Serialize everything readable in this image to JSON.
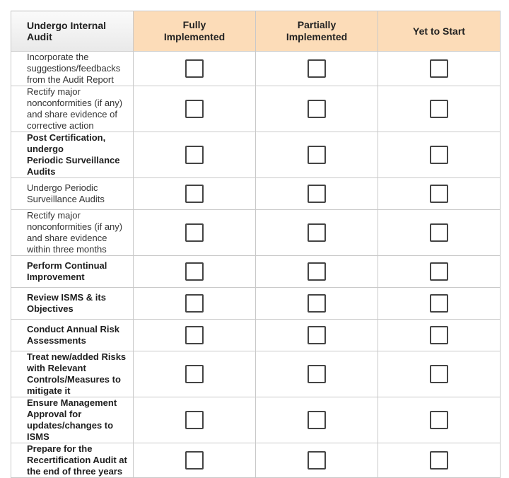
{
  "header": {
    "task": "Undergo Internal Audit",
    "columns": [
      "Fully\nImplemented",
      "Partially\nImplemented",
      "Yet to Start"
    ]
  },
  "rows": [
    {
      "task": "Incorporate the suggestions/feedbacks\nfrom the Audit Report",
      "bold": false
    },
    {
      "task": "Rectify major nonconformities (if any)\nand share evidence of corrective action",
      "bold": false
    },
    {
      "task": "Post Certification, undergo\nPeriodic Surveillance Audits",
      "bold": true
    },
    {
      "task": "Undergo Periodic Surveillance Audits",
      "bold": false
    },
    {
      "task": "Rectify major nonconformities (if any)\nand share evidence within three months",
      "bold": false
    },
    {
      "task": "Perform Continual Improvement",
      "bold": true
    },
    {
      "task": "Review ISMS & its Objectives",
      "bold": true
    },
    {
      "task": "Conduct Annual Risk Assessments",
      "bold": true
    },
    {
      "task": "Treat new/added Risks with Relevant\nControls/Measures to mitigate it",
      "bold": true
    },
    {
      "task": "Ensure Management Approval for\nupdates/changes to ISMS",
      "bold": true
    },
    {
      "task": "Prepare for the Recertification Audit at\nthe end of three years",
      "bold": true
    }
  ],
  "colors": {
    "status_header_bg": "#fcdcb8",
    "border": "#c9c9c9"
  }
}
